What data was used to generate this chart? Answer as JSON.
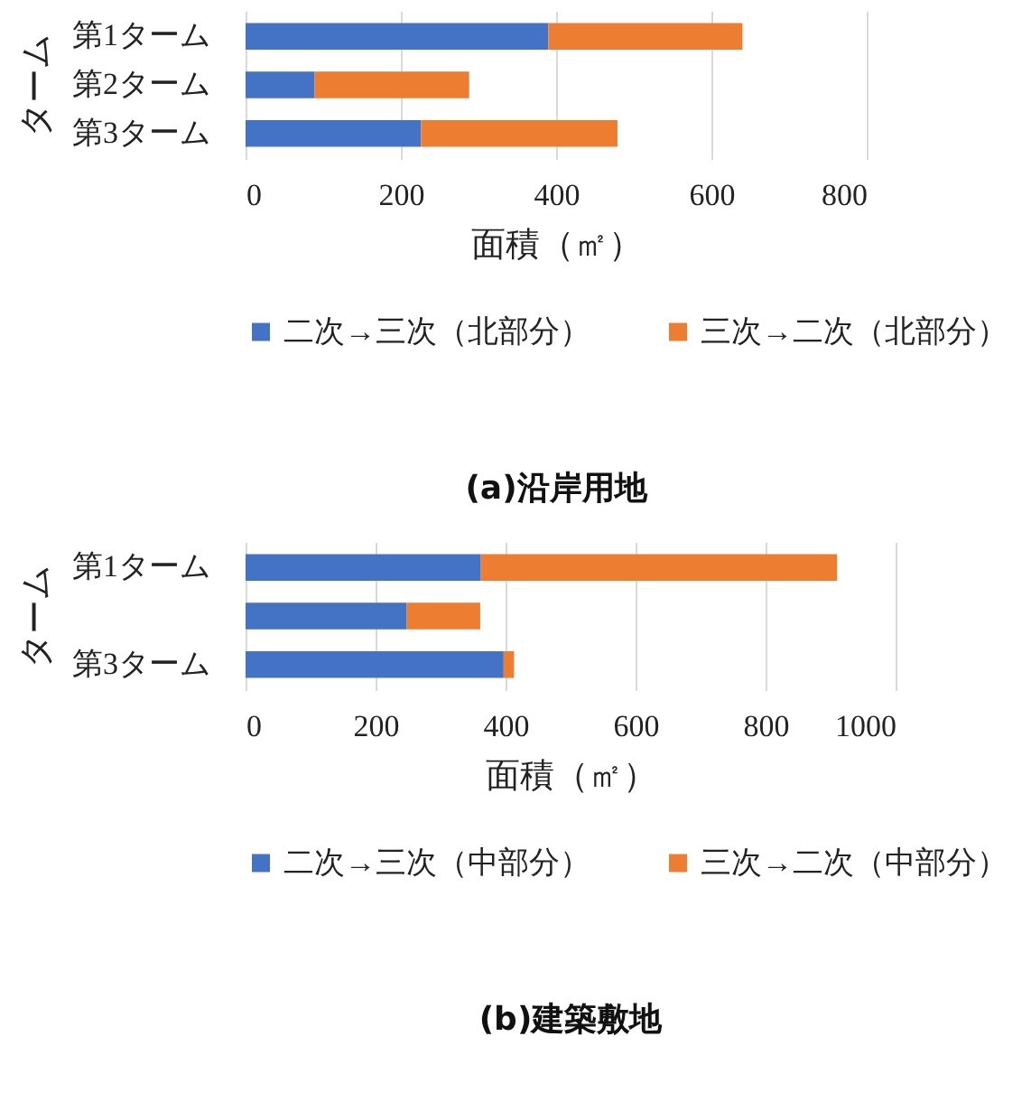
{
  "chart_data": [
    {
      "type": "bar",
      "orientation": "horizontal",
      "stacked": true,
      "title": "(a)沿岸用地",
      "xlabel": "面積（㎡）",
      "ylabel": "ターム",
      "categories": [
        "第1ターム",
        "第2ターム",
        "第3ターム"
      ],
      "series": [
        {
          "name": "二次→三次（北部分）",
          "color": "#4472c4",
          "values": [
            390,
            89,
            226
          ]
        },
        {
          "name": "三次→二次（北部分）",
          "color": "#ed7d31",
          "values": [
            250,
            199,
            253
          ]
        }
      ],
      "xlim": [
        0,
        800
      ],
      "xticks": [
        0,
        200,
        400,
        600,
        800
      ],
      "grid": "x",
      "legend": "bottom"
    },
    {
      "type": "bar",
      "orientation": "horizontal",
      "stacked": true,
      "title": "(b)建築敷地",
      "xlabel": "面積（㎡）",
      "ylabel": "ターム",
      "categories": [
        "第1ターム",
        null,
        "第3ターム"
      ],
      "series": [
        {
          "name": "二次→三次（中部分）",
          "color": "#4472c4",
          "values": [
            362,
            248,
            397
          ]
        },
        {
          "name": "三次→二次（中部分）",
          "color": "#ed7d31",
          "values": [
            548,
            113,
            16
          ]
        }
      ],
      "xlim": [
        0,
        1000
      ],
      "xticks": [
        0,
        200,
        400,
        600,
        800,
        1000
      ],
      "grid": "x",
      "legend": "bottom"
    }
  ]
}
